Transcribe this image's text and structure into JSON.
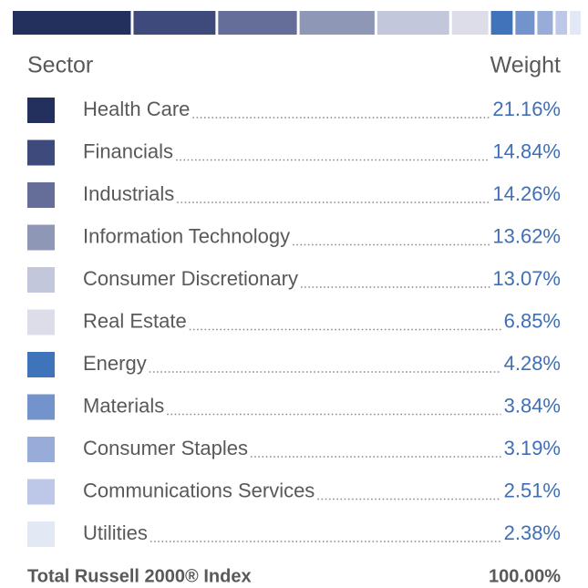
{
  "chart_data": {
    "type": "stacked-bar",
    "column_headers": [
      "Sector",
      "Weight"
    ],
    "categories": [
      "Health Care",
      "Financials",
      "Industrials",
      "Information Technology",
      "Consumer Discretionary",
      "Real Estate",
      "Energy",
      "Materials",
      "Consumer Staples",
      "Communications Services",
      "Utilities"
    ],
    "values": [
      21.16,
      14.84,
      14.26,
      13.62,
      13.07,
      6.85,
      4.28,
      3.84,
      3.19,
      2.51,
      2.38
    ],
    "value_labels": [
      "21.16%",
      "14.84%",
      "14.26%",
      "13.62%",
      "13.07%",
      "6.85%",
      "4.28%",
      "3.84%",
      "3.19%",
      "2.51%",
      "2.38%"
    ],
    "colors": [
      "#23305e",
      "#3f4a7c",
      "#646e98",
      "#8f97b7",
      "#c3c7dc",
      "#dcdde8",
      "#3f74bb",
      "#7393cc",
      "#97acd9",
      "#bdc8e8",
      "#e3e8f5"
    ],
    "total": {
      "label": "Total Russell 2000® Index",
      "value": 100,
      "value_label": "100.00%"
    }
  }
}
